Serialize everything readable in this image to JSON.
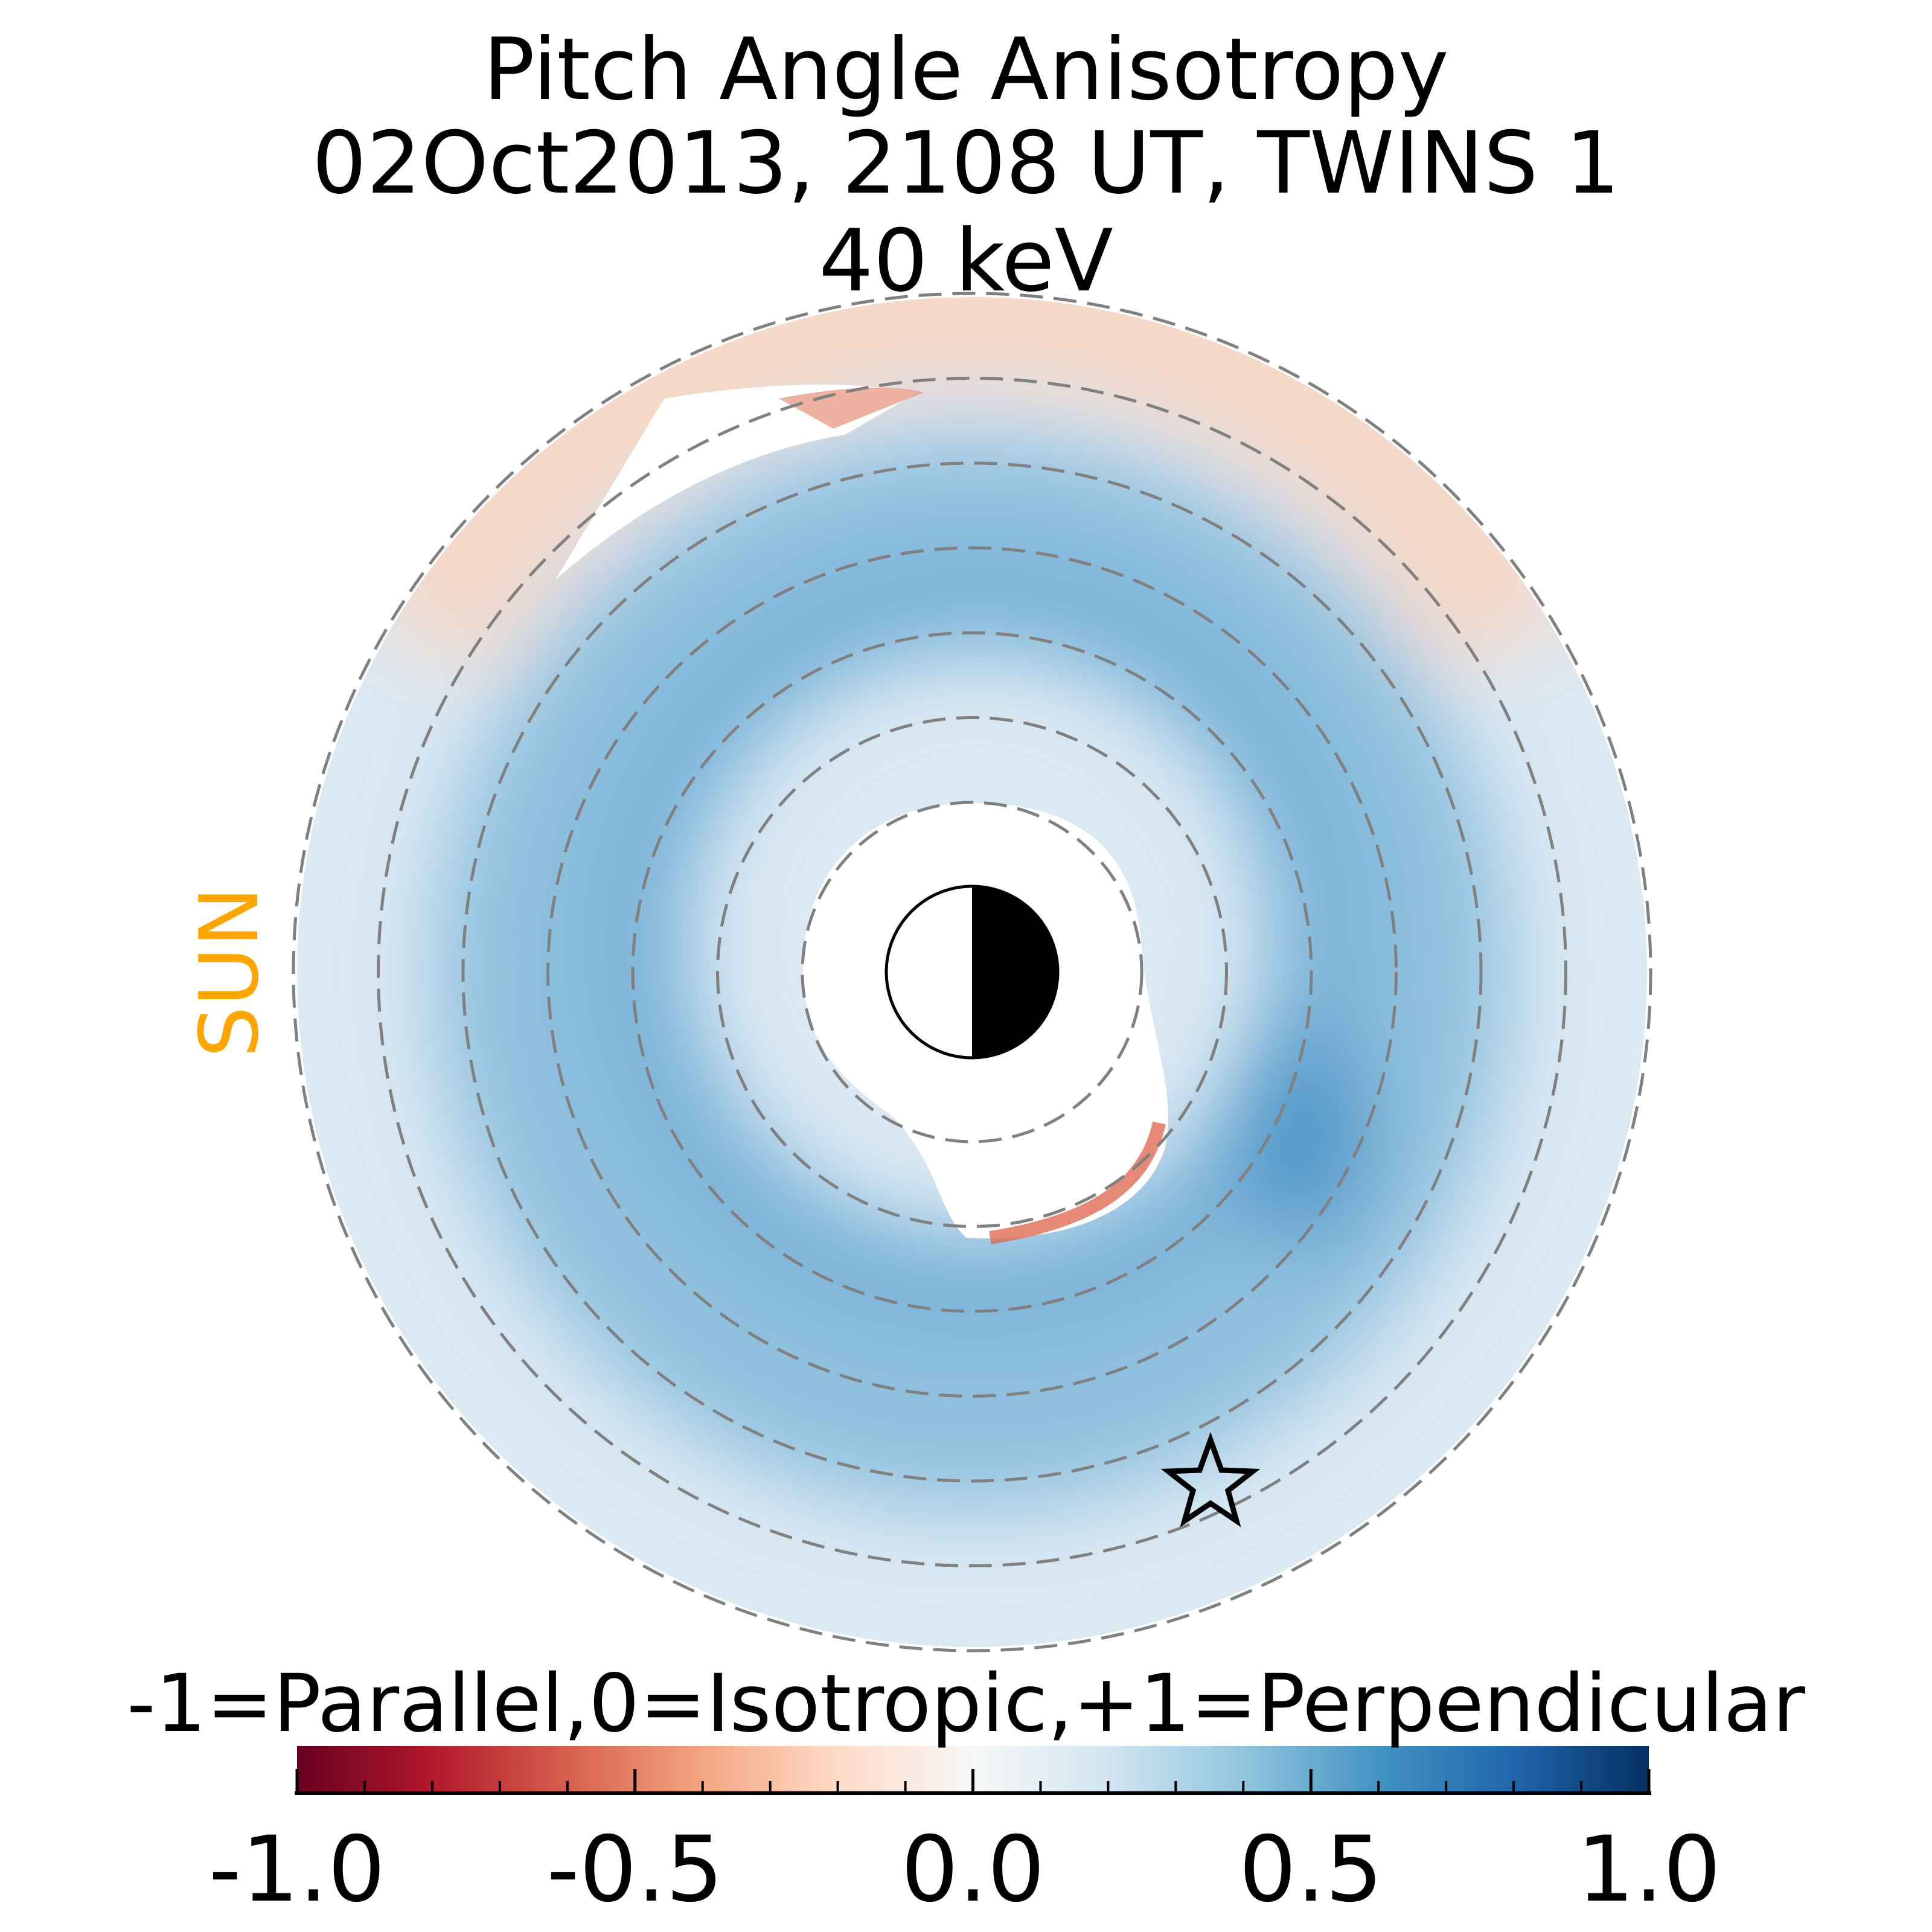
{
  "chart_data": {
    "type": "heatmap",
    "title": [
      "Pitch Angle Anisotropy",
      "02Oct2013, 2108 UT,  TWINS 1",
      "40 keV"
    ],
    "projection": "polar",
    "annotations": {
      "sun_label": "SUN",
      "sun_label_color": "#FFA500",
      "sun_direction": "left",
      "marker": "star",
      "marker_position": "lower-right"
    },
    "dashed_circles": 7,
    "colorbar": {
      "label": "-1=Parallel,0=Isotropic,+1=Perpendicular",
      "range": [
        -1.0,
        1.0
      ],
      "colormap": "RdBu",
      "major_ticks": [
        -1.0,
        -0.5,
        0.0,
        0.5,
        1.0
      ],
      "tick_labels": [
        "-1.0",
        "-0.5",
        "0.0",
        "0.5",
        "1.0"
      ],
      "minor_tick_step": 0.1,
      "placement": "bottom"
    },
    "description_of_values": {
      "outer_top_arc": -0.2,
      "dayside_inner_ring": 0.4,
      "overall_annulus": 0.25,
      "near_earth_dusk_edge": -0.6
    }
  }
}
